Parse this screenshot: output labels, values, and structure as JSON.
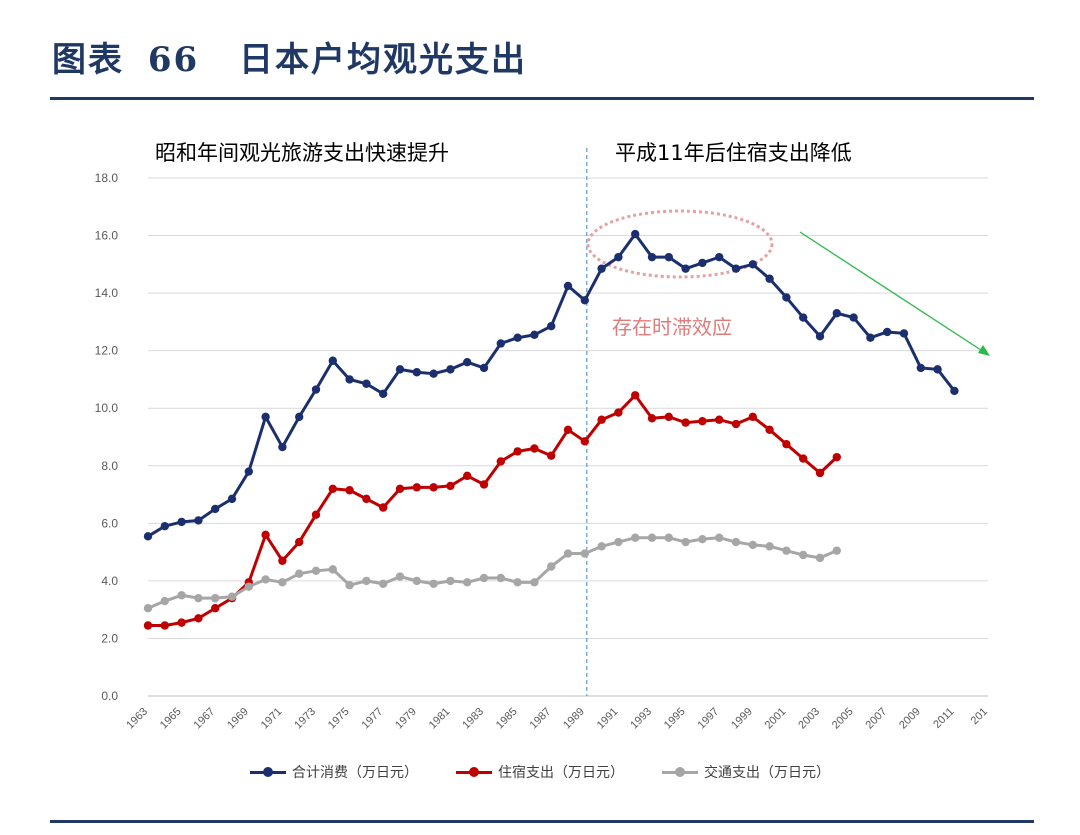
{
  "header": {
    "figure_label": "图表",
    "figure_number": "66",
    "title": "日本户均观光支出"
  },
  "chart_data": {
    "type": "line",
    "title": "",
    "xlabel": "",
    "ylabel": "",
    "ylim": [
      0,
      18
    ],
    "yticks": [
      "0.0",
      "2.0",
      "4.0",
      "6.0",
      "8.0",
      "10.0",
      "12.0",
      "14.0",
      "16.0",
      "18.0"
    ],
    "xticks": [
      "1963",
      "1965",
      "1967",
      "1969",
      "1971",
      "1973",
      "1975",
      "1977",
      "1979",
      "1981",
      "1983",
      "1985",
      "1987",
      "1989",
      "1991",
      "1993",
      "1995",
      "1997",
      "1999",
      "2001",
      "2003",
      "2005",
      "2007",
      "2009",
      "2011",
      "201"
    ],
    "grid": "horizontal",
    "legend_position": "bottom",
    "series": [
      {
        "name": "合计消费（万日元）",
        "color": "#1b2f6e",
        "x": [
          1963,
          1964,
          1965,
          1966,
          1967,
          1968,
          1969,
          1970,
          1971,
          1972,
          1973,
          1974,
          1975,
          1976,
          1977,
          1978,
          1979,
          1980,
          1981,
          1982,
          1983,
          1984,
          1985,
          1986,
          1987,
          1988,
          1989,
          1990,
          1991,
          1992,
          1993,
          1994,
          1995,
          1996,
          1997,
          1998,
          1999,
          2000,
          2001,
          2002,
          2003,
          2004,
          2005,
          2006,
          2007,
          2008,
          2009,
          2010,
          2011
        ],
        "values": [
          5.55,
          5.9,
          6.05,
          6.1,
          6.5,
          6.85,
          7.8,
          9.7,
          8.65,
          9.7,
          10.65,
          11.65,
          11.0,
          10.85,
          10.5,
          11.35,
          11.25,
          11.2,
          11.35,
          11.6,
          11.4,
          12.25,
          12.45,
          12.55,
          12.85,
          14.25,
          13.75,
          14.85,
          15.25,
          16.05,
          15.25,
          15.25,
          14.85,
          15.05,
          15.25,
          14.85,
          15.0,
          14.5,
          13.85,
          13.15,
          12.5,
          13.3,
          13.15,
          12.45,
          12.65,
          12.6,
          11.4,
          11.35,
          10.6
        ]
      },
      {
        "name": "住宿支出（万日元）",
        "color": "#c00000",
        "x": [
          1963,
          1964,
          1965,
          1966,
          1967,
          1968,
          1969,
          1970,
          1971,
          1972,
          1973,
          1974,
          1975,
          1976,
          1977,
          1978,
          1979,
          1980,
          1981,
          1982,
          1983,
          1984,
          1985,
          1986,
          1987,
          1988,
          1989,
          1990,
          1991,
          1992,
          1993,
          1994,
          1995,
          1996,
          1997,
          1998,
          1999,
          2000,
          2001,
          2002,
          2003,
          2004
        ],
        "values": [
          2.45,
          2.45,
          2.55,
          2.7,
          3.05,
          3.4,
          3.95,
          5.6,
          4.7,
          5.35,
          6.3,
          7.2,
          7.15,
          6.85,
          6.55,
          7.2,
          7.25,
          7.25,
          7.3,
          7.65,
          7.35,
          8.15,
          8.5,
          8.6,
          8.35,
          9.25,
          8.85,
          9.6,
          9.85,
          10.45,
          9.65,
          9.7,
          9.5,
          9.55,
          9.6,
          9.45,
          9.7,
          9.25,
          8.75,
          8.25,
          7.75,
          8.3
        ]
      },
      {
        "name": "交通支出（万日元）",
        "color": "#a6a6a6",
        "x": [
          1963,
          1964,
          1965,
          1966,
          1967,
          1968,
          1969,
          1970,
          1971,
          1972,
          1973,
          1974,
          1975,
          1976,
          1977,
          1978,
          1979,
          1980,
          1981,
          1982,
          1983,
          1984,
          1985,
          1986,
          1987,
          1988,
          1989,
          1990,
          1991,
          1992,
          1993,
          1994,
          1995,
          1996,
          1997,
          1998,
          1999,
          2000,
          2001,
          2002,
          2003,
          2004
        ],
        "values": [
          3.05,
          3.3,
          3.5,
          3.4,
          3.4,
          3.45,
          3.8,
          4.05,
          3.95,
          4.25,
          4.35,
          4.4,
          3.85,
          4.0,
          3.9,
          4.15,
          4.0,
          3.9,
          4.0,
          3.95,
          4.1,
          4.1,
          3.95,
          3.95,
          4.5,
          4.95,
          4.95,
          5.2,
          5.35,
          5.5,
          5.5,
          5.5,
          5.35,
          5.45,
          5.5,
          5.35,
          5.25,
          5.2,
          5.05,
          4.9,
          4.8,
          5.05
        ]
      }
    ],
    "annotations": {
      "left_heading": "昭和年间观光旅游支出快速提升",
      "right_heading": "平成11年后住宿支出降低",
      "lag_note": "存在时滞效应",
      "divider_year": 1989,
      "arrow_color": "#2db84b",
      "ellipse_color": "#e6a0a0",
      "note_color": "#e07b7b"
    }
  }
}
